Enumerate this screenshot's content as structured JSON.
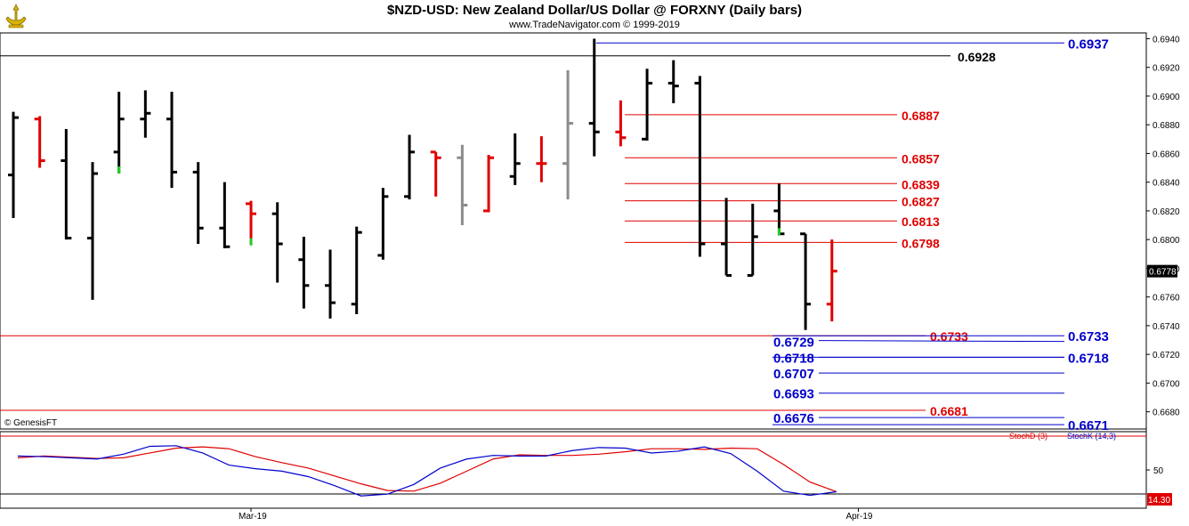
{
  "header": {
    "title": "$NZD-USD:  New Zealand Dollar/US Dollar @ FORXNY  (Daily bars)",
    "subtitle": "www.TradeNavigator.com © 1999-2019",
    "copyright": "© GenesisFT"
  },
  "colors": {
    "up": "#000000",
    "down": "#e00000",
    "neutral": "#8c8c8c",
    "blue": "#0000cc",
    "red": "#e00000"
  },
  "chart_data": [
    {
      "type": "ohlc",
      "title": "$NZD-USD:  New Zealand Dollar/US Dollar @ FORXNY  (Daily bars)",
      "ylim": [
        0.6668,
        0.6944
      ],
      "yticks": [
        "0.6940",
        "0.6920",
        "0.6900",
        "0.6880",
        "0.6860",
        "0.6840",
        "0.6820",
        "0.6800",
        "0.6780",
        "0.6760",
        "0.6740",
        "0.6720",
        "0.6700",
        "0.6680"
      ],
      "x_labels": [
        {
          "label": "Mar-19",
          "bar": 9
        },
        {
          "label": "Apr-19",
          "bar": 32
        }
      ],
      "last_price": "0.6778",
      "bars": [
        {
          "o": 0.6845,
          "h": 0.6889,
          "l": 0.6815,
          "c": 0.6885,
          "col": "up"
        },
        {
          "o": 0.6884,
          "h": 0.6886,
          "l": 0.685,
          "c": 0.6855,
          "col": "down"
        },
        {
          "o": 0.6855,
          "h": 0.6877,
          "l": 0.68,
          "c": 0.6801,
          "col": "up"
        },
        {
          "o": 0.6801,
          "h": 0.6854,
          "l": 0.6758,
          "c": 0.6846,
          "col": "up"
        },
        {
          "o": 0.6861,
          "h": 0.6903,
          "l": 0.6846,
          "c": 0.6884,
          "col": "up",
          "gtick": true
        },
        {
          "o": 0.6884,
          "h": 0.6904,
          "l": 0.6871,
          "c": 0.6888,
          "col": "up"
        },
        {
          "o": 0.6884,
          "h": 0.6903,
          "l": 0.6836,
          "c": 0.6847,
          "col": "up"
        },
        {
          "o": 0.6847,
          "h": 0.6854,
          "l": 0.6797,
          "c": 0.6808,
          "col": "up"
        },
        {
          "o": 0.6808,
          "h": 0.684,
          "l": 0.6794,
          "c": 0.6795,
          "col": "up"
        },
        {
          "o": 0.6825,
          "h": 0.6827,
          "l": 0.6796,
          "c": 0.6818,
          "col": "down",
          "gtick": true
        },
        {
          "o": 0.6818,
          "h": 0.6826,
          "l": 0.677,
          "c": 0.6797,
          "col": "up"
        },
        {
          "o": 0.6786,
          "h": 0.6802,
          "l": 0.6752,
          "c": 0.6768,
          "col": "up"
        },
        {
          "o": 0.6768,
          "h": 0.6793,
          "l": 0.6745,
          "c": 0.6756,
          "col": "up"
        },
        {
          "o": 0.6755,
          "h": 0.6809,
          "l": 0.6748,
          "c": 0.6805,
          "col": "up"
        },
        {
          "o": 0.6789,
          "h": 0.6836,
          "l": 0.6786,
          "c": 0.683,
          "col": "up"
        },
        {
          "o": 0.683,
          "h": 0.6873,
          "l": 0.6828,
          "c": 0.6861,
          "col": "up"
        },
        {
          "o": 0.6861,
          "h": 0.6861,
          "l": 0.683,
          "c": 0.6857,
          "col": "down"
        },
        {
          "o": 0.6857,
          "h": 0.6866,
          "l": 0.681,
          "c": 0.6824,
          "col": "neutral"
        },
        {
          "o": 0.682,
          "h": 0.6859,
          "l": 0.6819,
          "c": 0.6857,
          "col": "down"
        },
        {
          "o": 0.6844,
          "h": 0.6874,
          "l": 0.6838,
          "c": 0.6853,
          "col": "up"
        },
        {
          "o": 0.6853,
          "h": 0.6872,
          "l": 0.684,
          "c": 0.6853,
          "col": "down"
        },
        {
          "o": 0.6853,
          "h": 0.6918,
          "l": 0.6828,
          "c": 0.6881,
          "col": "neutral"
        },
        {
          "o": 0.6881,
          "h": 0.694,
          "l": 0.6858,
          "c": 0.6875,
          "col": "up"
        },
        {
          "o": 0.6875,
          "h": 0.6897,
          "l": 0.6865,
          "c": 0.6871,
          "col": "down"
        },
        {
          "o": 0.687,
          "h": 0.6919,
          "l": 0.6869,
          "c": 0.6909,
          "col": "up"
        },
        {
          "o": 0.6909,
          "h": 0.6925,
          "l": 0.6895,
          "c": 0.6907,
          "col": "up"
        },
        {
          "o": 0.6909,
          "h": 0.6914,
          "l": 0.6788,
          "c": 0.6797,
          "col": "up"
        },
        {
          "o": 0.6797,
          "h": 0.6829,
          "l": 0.6775,
          "c": 0.6775,
          "col": "up"
        },
        {
          "o": 0.6775,
          "h": 0.6825,
          "l": 0.6775,
          "c": 0.6802,
          "col": "up"
        },
        {
          "o": 0.682,
          "h": 0.6839,
          "l": 0.6803,
          "c": 0.6804,
          "col": "up",
          "gtick": true
        },
        {
          "o": 0.6804,
          "h": 0.6804,
          "l": 0.6737,
          "c": 0.6755,
          "col": "up"
        },
        {
          "o": 0.6755,
          "h": 0.68,
          "l": 0.6743,
          "c": 0.6778,
          "col": "down"
        }
      ],
      "levels": [
        {
          "value": 0.6937,
          "label": "0.6937",
          "color": "blue",
          "from": "left",
          "label_side": "right"
        },
        {
          "value": 0.6928,
          "label": "0.6928",
          "color": "black",
          "from": "all",
          "label_side": "mid"
        },
        {
          "value": 0.6887,
          "label": "0.6887",
          "color": "red",
          "from": "mid",
          "label_side": "mid"
        },
        {
          "value": 0.6857,
          "label": "0.6857",
          "color": "red",
          "from": "mid",
          "label_side": "mid"
        },
        {
          "value": 0.6839,
          "label": "0.6839",
          "color": "red",
          "from": "mid",
          "label_side": "mid"
        },
        {
          "value": 0.6827,
          "label": "0.6827",
          "color": "red",
          "from": "mid",
          "label_side": "mid"
        },
        {
          "value": 0.6813,
          "label": "0.6813",
          "color": "red",
          "from": "mid",
          "label_side": "mid"
        },
        {
          "value": 0.6798,
          "label": "0.6798",
          "color": "red",
          "from": "mid",
          "label_side": "mid"
        },
        {
          "value": 0.6733,
          "label": "0.6733",
          "color": "red",
          "from": "all",
          "label_side": "mid"
        },
        {
          "value": 0.6733,
          "label": "0.6733",
          "color": "blue",
          "from": "right",
          "label_side": "right"
        },
        {
          "value": 0.6729,
          "label": "0.6729",
          "color": "blue",
          "from": "right",
          "label_side": "left"
        },
        {
          "value": 0.6718,
          "label": "0.6718",
          "color": "blue",
          "from": "right",
          "label_side": "left"
        },
        {
          "value": 0.6718,
          "label": "0.6718",
          "color": "blue",
          "from": "right",
          "label_side": "right"
        },
        {
          "value": 0.6707,
          "label": "0.6707",
          "color": "blue",
          "from": "right",
          "label_side": "left"
        },
        {
          "value": 0.6693,
          "label": "0.6693",
          "color": "blue",
          "from": "right",
          "label_side": "left"
        },
        {
          "value": 0.6681,
          "label": "0.6681",
          "color": "red",
          "from": "all",
          "label_side": "mid"
        },
        {
          "value": 0.6676,
          "label": "0.6676",
          "color": "blue",
          "from": "right",
          "label_side": "left"
        },
        {
          "value": 0.6671,
          "label": "0.6671",
          "color": "blue",
          "from": "right",
          "label_side": "right"
        }
      ]
    },
    {
      "type": "line",
      "title": "Stochastic",
      "ylim": [
        0,
        100
      ],
      "yticks": [
        "50"
      ],
      "last_value": "14.30",
      "legend": [
        "StochD (3)",
        "StochK (14,3)"
      ],
      "series": [
        {
          "name": "StochD (3)",
          "color": "#e00000",
          "values": [
            70,
            73,
            71,
            69,
            70,
            78,
            86,
            88,
            85,
            72,
            62,
            53,
            40,
            27,
            16,
            15,
            28,
            48,
            68,
            75,
            74,
            74,
            76,
            80,
            85,
            85,
            84,
            86,
            85,
            59,
            30,
            14
          ]
        },
        {
          "name": "StochK (14,3)",
          "color": "#0000cc",
          "values": [
            73,
            72,
            70,
            68,
            76,
            89,
            90,
            78,
            58,
            52,
            48,
            39,
            24,
            7,
            10,
            26,
            53,
            68,
            74,
            73,
            73,
            82,
            87,
            86,
            78,
            81,
            88,
            77,
            48,
            15,
            8,
            14
          ]
        }
      ]
    }
  ]
}
